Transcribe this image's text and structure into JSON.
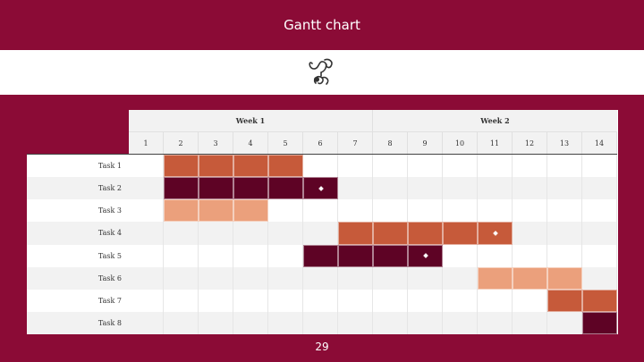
{
  "slide": {
    "title": "Gantt chart",
    "page_number": "29"
  },
  "icon": {
    "name": "decorative-ornament-icon",
    "color": "#333333"
  },
  "colors": {
    "background": "#8b0b36",
    "bar_orange": "#c65a3a",
    "bar_dark": "#5e0325",
    "bar_light": "#eba07c",
    "alt_row": "#f2f2f2"
  },
  "chart_data": {
    "type": "gantt",
    "title": "",
    "weeks": [
      {
        "label": "Week 1",
        "days": [
          1,
          7
        ]
      },
      {
        "label": "Week 2",
        "days": [
          8,
          14
        ]
      }
    ],
    "days": [
      "1",
      "2",
      "3",
      "4",
      "5",
      "6",
      "7",
      "8",
      "9",
      "10",
      "11",
      "12",
      "13",
      "14"
    ],
    "tasks": [
      {
        "name": "Task 1",
        "start": 2,
        "end": 5,
        "color": "#c65a3a",
        "milestone": null
      },
      {
        "name": "Task 2",
        "start": 2,
        "end": 6,
        "color": "#5e0325",
        "milestone": 6
      },
      {
        "name": "Task 3",
        "start": 2,
        "end": 4,
        "color": "#eba07c",
        "milestone": null
      },
      {
        "name": "Task 4",
        "start": 7,
        "end": 11,
        "color": "#c65a3a",
        "milestone": 11
      },
      {
        "name": "Task 5",
        "start": 6,
        "end": 9,
        "color": "#5e0325",
        "milestone": 9
      },
      {
        "name": "Task 6",
        "start": 11,
        "end": 13,
        "color": "#eba07c",
        "milestone": null
      },
      {
        "name": "Task 7",
        "start": 13,
        "end": 14,
        "color": "#c65a3a",
        "milestone": null
      },
      {
        "name": "Task 8",
        "start": 14,
        "end": 14,
        "color": "#5e0325",
        "milestone": null
      }
    ]
  }
}
